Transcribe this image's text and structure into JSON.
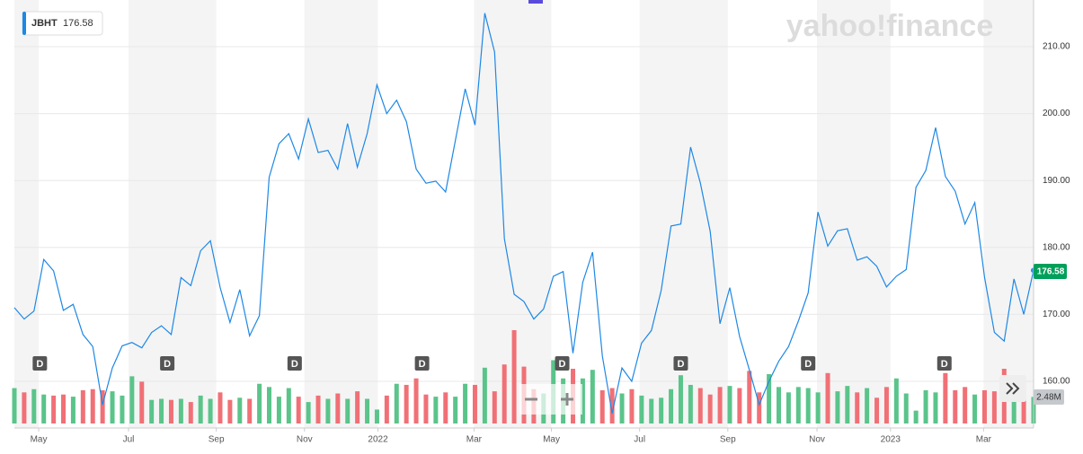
{
  "chart_data": {
    "type": "line",
    "ticker": "JBHT",
    "last_price_label": "176.58",
    "logo": "yahoo!finance",
    "color": "#1e88e5",
    "up_color": "#5ac48a",
    "down_color": "#f07076",
    "xlim": [
      0,
      104
    ],
    "ylim": [
      153.7,
      216.3
    ],
    "xticks": [
      {
        "value": 2.48,
        "label": "May"
      },
      {
        "value": 11.65,
        "label": "Jul"
      },
      {
        "value": 20.6,
        "label": "Sep"
      },
      {
        "value": 29.6,
        "label": "Nov"
      },
      {
        "value": 37.1,
        "label": "2022"
      },
      {
        "value": 46.9,
        "label": "Mar"
      },
      {
        "value": 54.8,
        "label": "May"
      },
      {
        "value": 63.8,
        "label": "Jul"
      },
      {
        "value": 72.8,
        "label": "Sep"
      },
      {
        "value": 81.9,
        "label": "Nov"
      },
      {
        "value": 89.4,
        "label": "2023"
      },
      {
        "value": 98.9,
        "label": "Mar"
      }
    ],
    "yticks": [
      {
        "value": 160,
        "label": "160.00"
      },
      {
        "value": 170,
        "label": "170.00"
      },
      {
        "value": 180,
        "label": "180.00"
      },
      {
        "value": 190,
        "label": "190.00"
      },
      {
        "value": 200,
        "label": "200.00"
      },
      {
        "value": 210,
        "label": "210.00"
      }
    ],
    "grid": true,
    "values": [
      171,
      169.3,
      170.5,
      178.2,
      176.5,
      170.6,
      171.5,
      167,
      165.2,
      156.5,
      162,
      165.3,
      165.8,
      165,
      167.3,
      168.3,
      167,
      175.5,
      174.3,
      179.5,
      181,
      174,
      168.8,
      173.7,
      166.8,
      169.8,
      190.5,
      195.5,
      197,
      193.2,
      199.2,
      194.2,
      194.5,
      191.7,
      198.5,
      192,
      197,
      204.3,
      200,
      202,
      198.8,
      191.7,
      189.6,
      189.9,
      188.3,
      196,
      203.7,
      198.3,
      215,
      209.2,
      181.3,
      173,
      171.9,
      169.3,
      170.8,
      175.7,
      176.4,
      164.2,
      174.8,
      179.3,
      163.8,
      155.2,
      162,
      160,
      165.7,
      167.6,
      173.6,
      183.2,
      183.5,
      195,
      189.6,
      182.4,
      168.6,
      174,
      166.7,
      161.7,
      156.5,
      160,
      163,
      165.2,
      169,
      173.2,
      185.3,
      180.2,
      182.5,
      182.8,
      178.1,
      178.6,
      177.2,
      174.1,
      175.7,
      176.7,
      189,
      191.5,
      197.9,
      190.6,
      188.4,
      183.5,
      186.7,
      175.5,
      167.3,
      166,
      175.3,
      170,
      176.58
    ],
    "volume_ylim": [
      0,
      9.7
    ],
    "volume": [
      3.3,
      2.9,
      3.2,
      2.7,
      2.6,
      2.7,
      2.5,
      3.1,
      3.2,
      3.1,
      3.0,
      2.6,
      4.4,
      3.9,
      2.2,
      2.3,
      2.2,
      2.3,
      2.0,
      2.6,
      2.3,
      2.9,
      2.2,
      2.4,
      2.3,
      3.7,
      3.4,
      2.5,
      3.3,
      2.5,
      2.0,
      2.6,
      2.3,
      2.8,
      2.3,
      3.0,
      2.3,
      1.3,
      2.6,
      3.7,
      3.6,
      4.2,
      2.7,
      2.5,
      2.9,
      2.5,
      3.7,
      3.6,
      5.2,
      3.0,
      5.5,
      8.7,
      5.3,
      3.2,
      2.8,
      5.9,
      4.2,
      5.1,
      4.2,
      5.0,
      3.1,
      3.3,
      2.8,
      3.2,
      2.6,
      2.3,
      2.4,
      3.2,
      4.5,
      3.6,
      3.3,
      2.7,
      3.4,
      3.5,
      3.3,
      4.9,
      2.9,
      4.6,
      3.4,
      2.9,
      3.4,
      3.3,
      2.9,
      4.7,
      3.0,
      3.5,
      2.9,
      3.3,
      2.4,
      3.4,
      4.2,
      2.8,
      1.2,
      3.1,
      2.9,
      4.7,
      3.1,
      3.4,
      2.7,
      3.1,
      3.0,
      5.1,
      2.6,
      3.0,
      2.48
    ],
    "last_volume_label": "2.48M",
    "dividends": {
      "label": "D",
      "at": [
        2.6,
        15.6,
        28.6,
        41.6,
        55.9,
        68,
        81,
        94.9
      ]
    }
  }
}
